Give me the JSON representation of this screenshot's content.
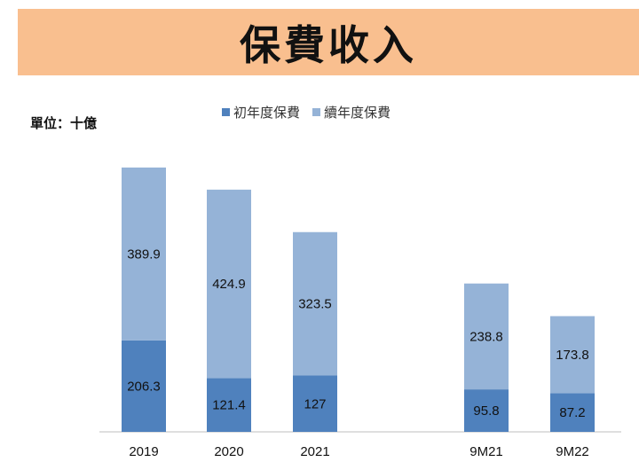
{
  "header": {
    "title": "保費收入"
  },
  "unit_label": "單位：十億",
  "colors": {
    "first_year": "#4F81BD",
    "renewal": "#95B3D7",
    "banner": "#F9BF8F"
  },
  "chart_data": {
    "type": "bar",
    "stacked": true,
    "categories": [
      "2019",
      "2020",
      "2021",
      "9M21",
      "9M22"
    ],
    "series": [
      {
        "name": "初年度保費",
        "values": [
          206.3,
          121.4,
          127,
          95.8,
          87.2
        ],
        "labels": [
          "206.3",
          "121.4",
          "127",
          "95.8",
          "87.2"
        ]
      },
      {
        "name": "續年度保費",
        "values": [
          389.9,
          424.9,
          323.5,
          238.8,
          173.8
        ],
        "labels": [
          "389.9",
          "424.9",
          "323.5",
          "238.8",
          "173.8"
        ]
      }
    ],
    "legend_position": "top-center",
    "grid": false
  }
}
